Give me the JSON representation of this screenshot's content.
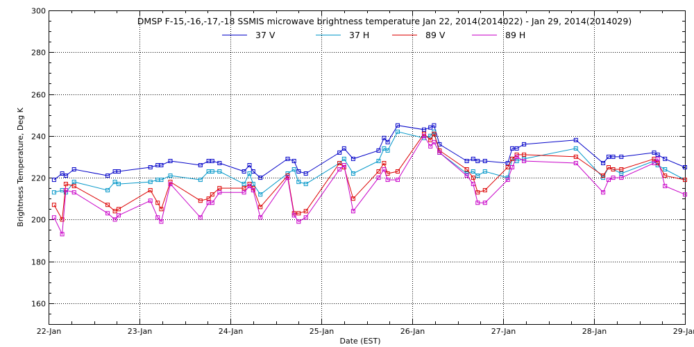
{
  "chart_data": {
    "type": "line",
    "title": "DMSP F-15,-16,-17,-18 SSMIS microwave brightness temperature Jan 22, 2014(2014022) - Jan 29, 2014(2014029)",
    "xlabel": "Date (EST)",
    "ylabel": "Brightness Temperature, Deg K",
    "xlim": [
      22,
      29
    ],
    "ylim": [
      150,
      300
    ],
    "xticks": [
      {
        "value": 22,
        "label": "22-Jan"
      },
      {
        "value": 23,
        "label": "23-Jan"
      },
      {
        "value": 24,
        "label": "24-Jan"
      },
      {
        "value": 25,
        "label": "25-Jan"
      },
      {
        "value": 26,
        "label": "26-Jan"
      },
      {
        "value": 27,
        "label": "27-Jan"
      },
      {
        "value": 28,
        "label": "28-Jan"
      },
      {
        "value": 29,
        "label": "29-Jan"
      }
    ],
    "yticks": [
      160,
      180,
      200,
      220,
      240,
      260,
      280,
      300
    ],
    "grid": true,
    "legend_position": "top-center",
    "series": [
      {
        "name": "37 V",
        "color": "#0000c8",
        "points": [
          [
            22.06,
            219
          ],
          [
            22.15,
            222
          ],
          [
            22.19,
            221
          ],
          [
            22.28,
            224
          ],
          [
            22.65,
            221
          ],
          [
            22.73,
            223
          ],
          [
            22.77,
            223
          ],
          [
            23.12,
            225
          ],
          [
            23.2,
            226
          ],
          [
            23.24,
            226
          ],
          [
            23.34,
            228
          ],
          [
            23.67,
            226
          ],
          [
            23.76,
            228
          ],
          [
            23.8,
            228
          ],
          [
            23.88,
            227
          ],
          [
            24.15,
            223
          ],
          [
            24.21,
            226
          ],
          [
            24.25,
            223
          ],
          [
            24.33,
            220
          ],
          [
            24.63,
            229
          ],
          [
            24.7,
            228
          ],
          [
            24.75,
            223
          ],
          [
            24.83,
            222
          ],
          [
            25.2,
            232
          ],
          [
            25.25,
            234
          ],
          [
            25.35,
            229
          ],
          [
            25.63,
            233
          ],
          [
            25.69,
            239
          ],
          [
            25.73,
            237
          ],
          [
            25.84,
            245
          ],
          [
            26.13,
            243
          ],
          [
            26.2,
            244
          ],
          [
            26.24,
            245
          ],
          [
            26.3,
            236
          ],
          [
            26.6,
            228
          ],
          [
            26.67,
            229
          ],
          [
            26.72,
            228
          ],
          [
            26.8,
            228
          ],
          [
            27.05,
            227
          ],
          [
            27.1,
            234
          ],
          [
            27.15,
            234
          ],
          [
            27.23,
            236
          ],
          [
            27.8,
            238
          ],
          [
            28.1,
            227
          ],
          [
            28.16,
            230
          ],
          [
            28.21,
            230
          ],
          [
            28.3,
            230
          ],
          [
            28.66,
            232
          ],
          [
            28.7,
            231
          ],
          [
            28.78,
            229
          ],
          [
            29.0,
            225
          ]
        ]
      },
      {
        "name": "37 H",
        "color": "#0096c8",
        "points": [
          [
            22.06,
            213
          ],
          [
            22.15,
            214
          ],
          [
            22.19,
            213
          ],
          [
            22.28,
            218
          ],
          [
            22.65,
            214
          ],
          [
            22.73,
            218
          ],
          [
            22.77,
            217
          ],
          [
            23.12,
            218
          ],
          [
            23.2,
            219
          ],
          [
            23.24,
            219
          ],
          [
            23.34,
            221
          ],
          [
            23.67,
            219
          ],
          [
            23.76,
            223
          ],
          [
            23.8,
            223
          ],
          [
            23.88,
            223
          ],
          [
            24.15,
            217
          ],
          [
            24.21,
            222
          ],
          [
            24.25,
            217
          ],
          [
            24.33,
            212
          ],
          [
            24.63,
            222
          ],
          [
            24.7,
            224
          ],
          [
            24.75,
            218
          ],
          [
            24.83,
            217
          ],
          [
            25.2,
            227
          ],
          [
            25.25,
            229
          ],
          [
            25.35,
            222
          ],
          [
            25.63,
            228
          ],
          [
            25.69,
            234
          ],
          [
            25.73,
            233
          ],
          [
            25.84,
            242
          ],
          [
            26.13,
            239
          ],
          [
            26.2,
            240
          ],
          [
            26.24,
            242
          ],
          [
            26.3,
            232
          ],
          [
            26.6,
            222
          ],
          [
            26.67,
            223
          ],
          [
            26.72,
            221
          ],
          [
            26.8,
            223
          ],
          [
            27.05,
            220
          ],
          [
            27.1,
            229
          ],
          [
            27.15,
            228
          ],
          [
            27.23,
            229
          ],
          [
            27.8,
            234
          ],
          [
            28.1,
            220
          ],
          [
            28.16,
            225
          ],
          [
            28.21,
            224
          ],
          [
            28.3,
            222
          ],
          [
            28.66,
            228
          ],
          [
            28.7,
            226
          ],
          [
            28.78,
            224
          ],
          [
            29.0,
            219
          ]
        ]
      },
      {
        "name": "89 V",
        "color": "#dc0000",
        "points": [
          [
            22.06,
            207
          ],
          [
            22.15,
            200
          ],
          [
            22.19,
            217
          ],
          [
            22.28,
            216
          ],
          [
            22.65,
            207
          ],
          [
            22.73,
            204
          ],
          [
            22.77,
            205
          ],
          [
            23.12,
            214
          ],
          [
            23.2,
            208
          ],
          [
            23.24,
            205
          ],
          [
            23.34,
            218
          ],
          [
            23.67,
            209
          ],
          [
            23.76,
            210
          ],
          [
            23.8,
            212
          ],
          [
            23.88,
            215
          ],
          [
            24.15,
            215
          ],
          [
            24.21,
            217
          ],
          [
            24.25,
            215
          ],
          [
            24.33,
            206
          ],
          [
            24.63,
            221
          ],
          [
            24.7,
            203
          ],
          [
            24.75,
            203
          ],
          [
            24.83,
            204
          ],
          [
            25.2,
            227
          ],
          [
            25.25,
            225
          ],
          [
            25.35,
            210
          ],
          [
            25.63,
            223
          ],
          [
            25.69,
            227
          ],
          [
            25.73,
            222
          ],
          [
            25.84,
            223
          ],
          [
            26.13,
            241
          ],
          [
            26.2,
            238
          ],
          [
            26.24,
            241
          ],
          [
            26.3,
            233
          ],
          [
            26.6,
            224
          ],
          [
            26.67,
            220
          ],
          [
            26.72,
            213
          ],
          [
            26.8,
            214
          ],
          [
            27.05,
            225
          ],
          [
            27.1,
            229
          ],
          [
            27.15,
            231
          ],
          [
            27.23,
            231
          ],
          [
            27.8,
            230
          ],
          [
            28.1,
            221
          ],
          [
            28.16,
            225
          ],
          [
            28.21,
            224
          ],
          [
            28.3,
            224
          ],
          [
            28.66,
            229
          ],
          [
            28.7,
            227
          ],
          [
            28.78,
            221
          ],
          [
            29.0,
            219
          ]
        ]
      },
      {
        "name": "89 H",
        "color": "#c800c8",
        "points": [
          [
            22.06,
            201
          ],
          [
            22.15,
            193
          ],
          [
            22.19,
            214
          ],
          [
            22.28,
            213
          ],
          [
            22.65,
            203
          ],
          [
            22.73,
            200
          ],
          [
            22.77,
            202
          ],
          [
            23.12,
            209
          ],
          [
            23.2,
            201
          ],
          [
            23.24,
            199
          ],
          [
            23.34,
            217
          ],
          [
            23.67,
            201
          ],
          [
            23.76,
            208
          ],
          [
            23.8,
            208
          ],
          [
            23.88,
            213
          ],
          [
            24.15,
            213
          ],
          [
            24.21,
            216
          ],
          [
            24.25,
            214
          ],
          [
            24.33,
            201
          ],
          [
            24.63,
            220
          ],
          [
            24.7,
            202
          ],
          [
            24.75,
            199
          ],
          [
            24.83,
            201
          ],
          [
            25.2,
            224
          ],
          [
            25.25,
            226
          ],
          [
            25.35,
            204
          ],
          [
            25.63,
            220
          ],
          [
            25.69,
            224
          ],
          [
            25.73,
            219
          ],
          [
            25.84,
            219
          ],
          [
            26.13,
            240
          ],
          [
            26.2,
            235
          ],
          [
            26.24,
            237
          ],
          [
            26.3,
            232
          ],
          [
            26.6,
            221
          ],
          [
            26.67,
            217
          ],
          [
            26.72,
            208
          ],
          [
            26.8,
            208
          ],
          [
            27.05,
            219
          ],
          [
            27.1,
            225
          ],
          [
            27.15,
            230
          ],
          [
            27.23,
            228
          ],
          [
            27.8,
            227
          ],
          [
            28.1,
            213
          ],
          [
            28.16,
            219
          ],
          [
            28.21,
            220
          ],
          [
            28.3,
            220
          ],
          [
            28.66,
            227
          ],
          [
            28.7,
            229
          ],
          [
            28.78,
            216
          ],
          [
            29.0,
            212
          ]
        ]
      }
    ]
  }
}
